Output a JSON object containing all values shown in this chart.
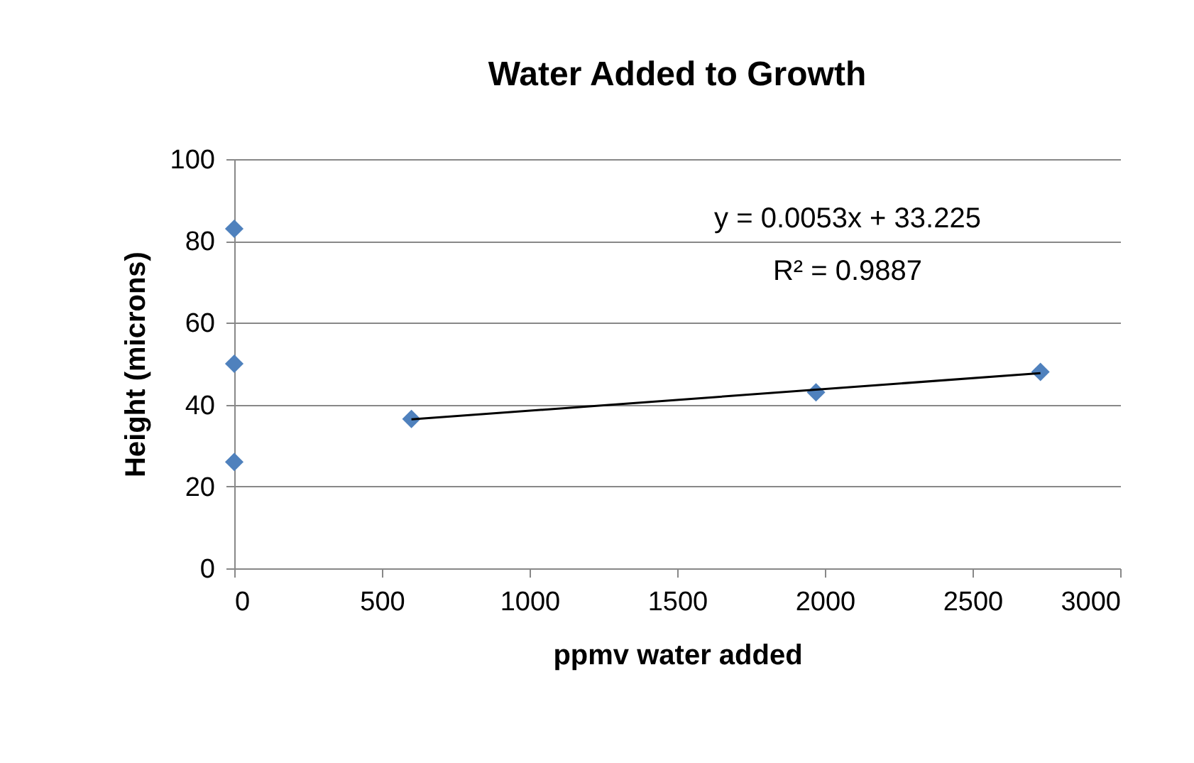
{
  "chart_data": {
    "type": "scatter",
    "title": "Water Added to Growth",
    "xlabel": "ppmv water added",
    "ylabel": "Height (microns)",
    "series": [
      {
        "color": "#4f81bd",
        "x": [
          0,
          0,
          0,
          600,
          1970,
          2730
        ],
        "values": [
          83,
          50,
          26,
          36.5,
          43,
          48
        ]
      },
      {
        "type": "line",
        "marker": "none",
        "color": "#000000",
        "x": [
          600,
          2730
        ],
        "values": [
          36.4,
          47.7
        ]
      }
    ],
    "annotations": [
      "y = 0.0053x + 33.225",
      "R² = 0.9887"
    ],
    "xlim": [
      0,
      3000
    ],
    "xticks": [
      0,
      500,
      1000,
      1500,
      2000,
      2500,
      3000
    ],
    "ylim": [
      0,
      100
    ],
    "yticks": [
      0,
      20,
      40,
      60,
      80,
      100
    ],
    "grid": "y",
    "marker": "diamond"
  }
}
